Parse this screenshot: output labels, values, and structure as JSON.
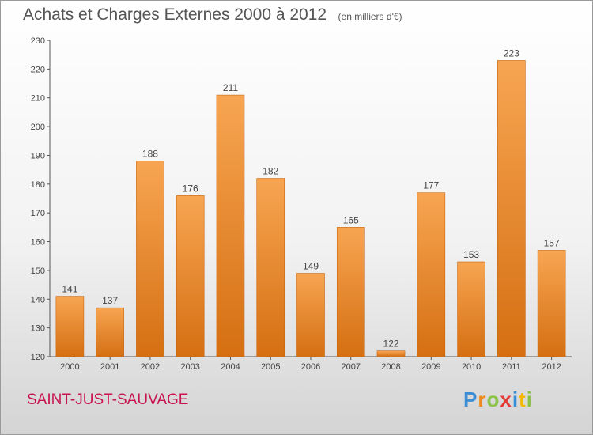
{
  "header": {
    "title": "Achats et Charges Externes 2000 à 2012",
    "unit": "(en milliers d'€)"
  },
  "footer": {
    "commune": "SAINT-JUST-SAUVAGE",
    "logo_letters": [
      {
        "ch": "P",
        "color": "#3a8ed6"
      },
      {
        "ch": "r",
        "color": "#f08a1c"
      },
      {
        "ch": "o",
        "color": "#8bc34a"
      },
      {
        "ch": "x",
        "color": "#e53935"
      },
      {
        "ch": "i",
        "color": "#3a8ed6"
      },
      {
        "ch": "t",
        "color": "#f5b800"
      },
      {
        "ch": "i",
        "color": "#8bc34a"
      }
    ]
  },
  "colors": {
    "bar_top": "#f7a552",
    "bar_bottom": "#d56f12",
    "commune": "#c8144e",
    "text": "#555555"
  },
  "chart_data": {
    "type": "bar",
    "title": "Achats et Charges Externes 2000 à 2012",
    "subtitle": "(en milliers d'€)",
    "categories": [
      "2000",
      "2001",
      "2002",
      "2003",
      "2004",
      "2005",
      "2006",
      "2007",
      "2008",
      "2009",
      "2010",
      "2011",
      "2012"
    ],
    "values": [
      141,
      137,
      188,
      176,
      211,
      182,
      149,
      165,
      122,
      177,
      153,
      223,
      157
    ],
    "ylim": [
      120,
      230
    ],
    "yticks": [
      120,
      130,
      140,
      150,
      160,
      170,
      180,
      190,
      200,
      210,
      220,
      230
    ],
    "grid": false,
    "data_labels": true
  }
}
